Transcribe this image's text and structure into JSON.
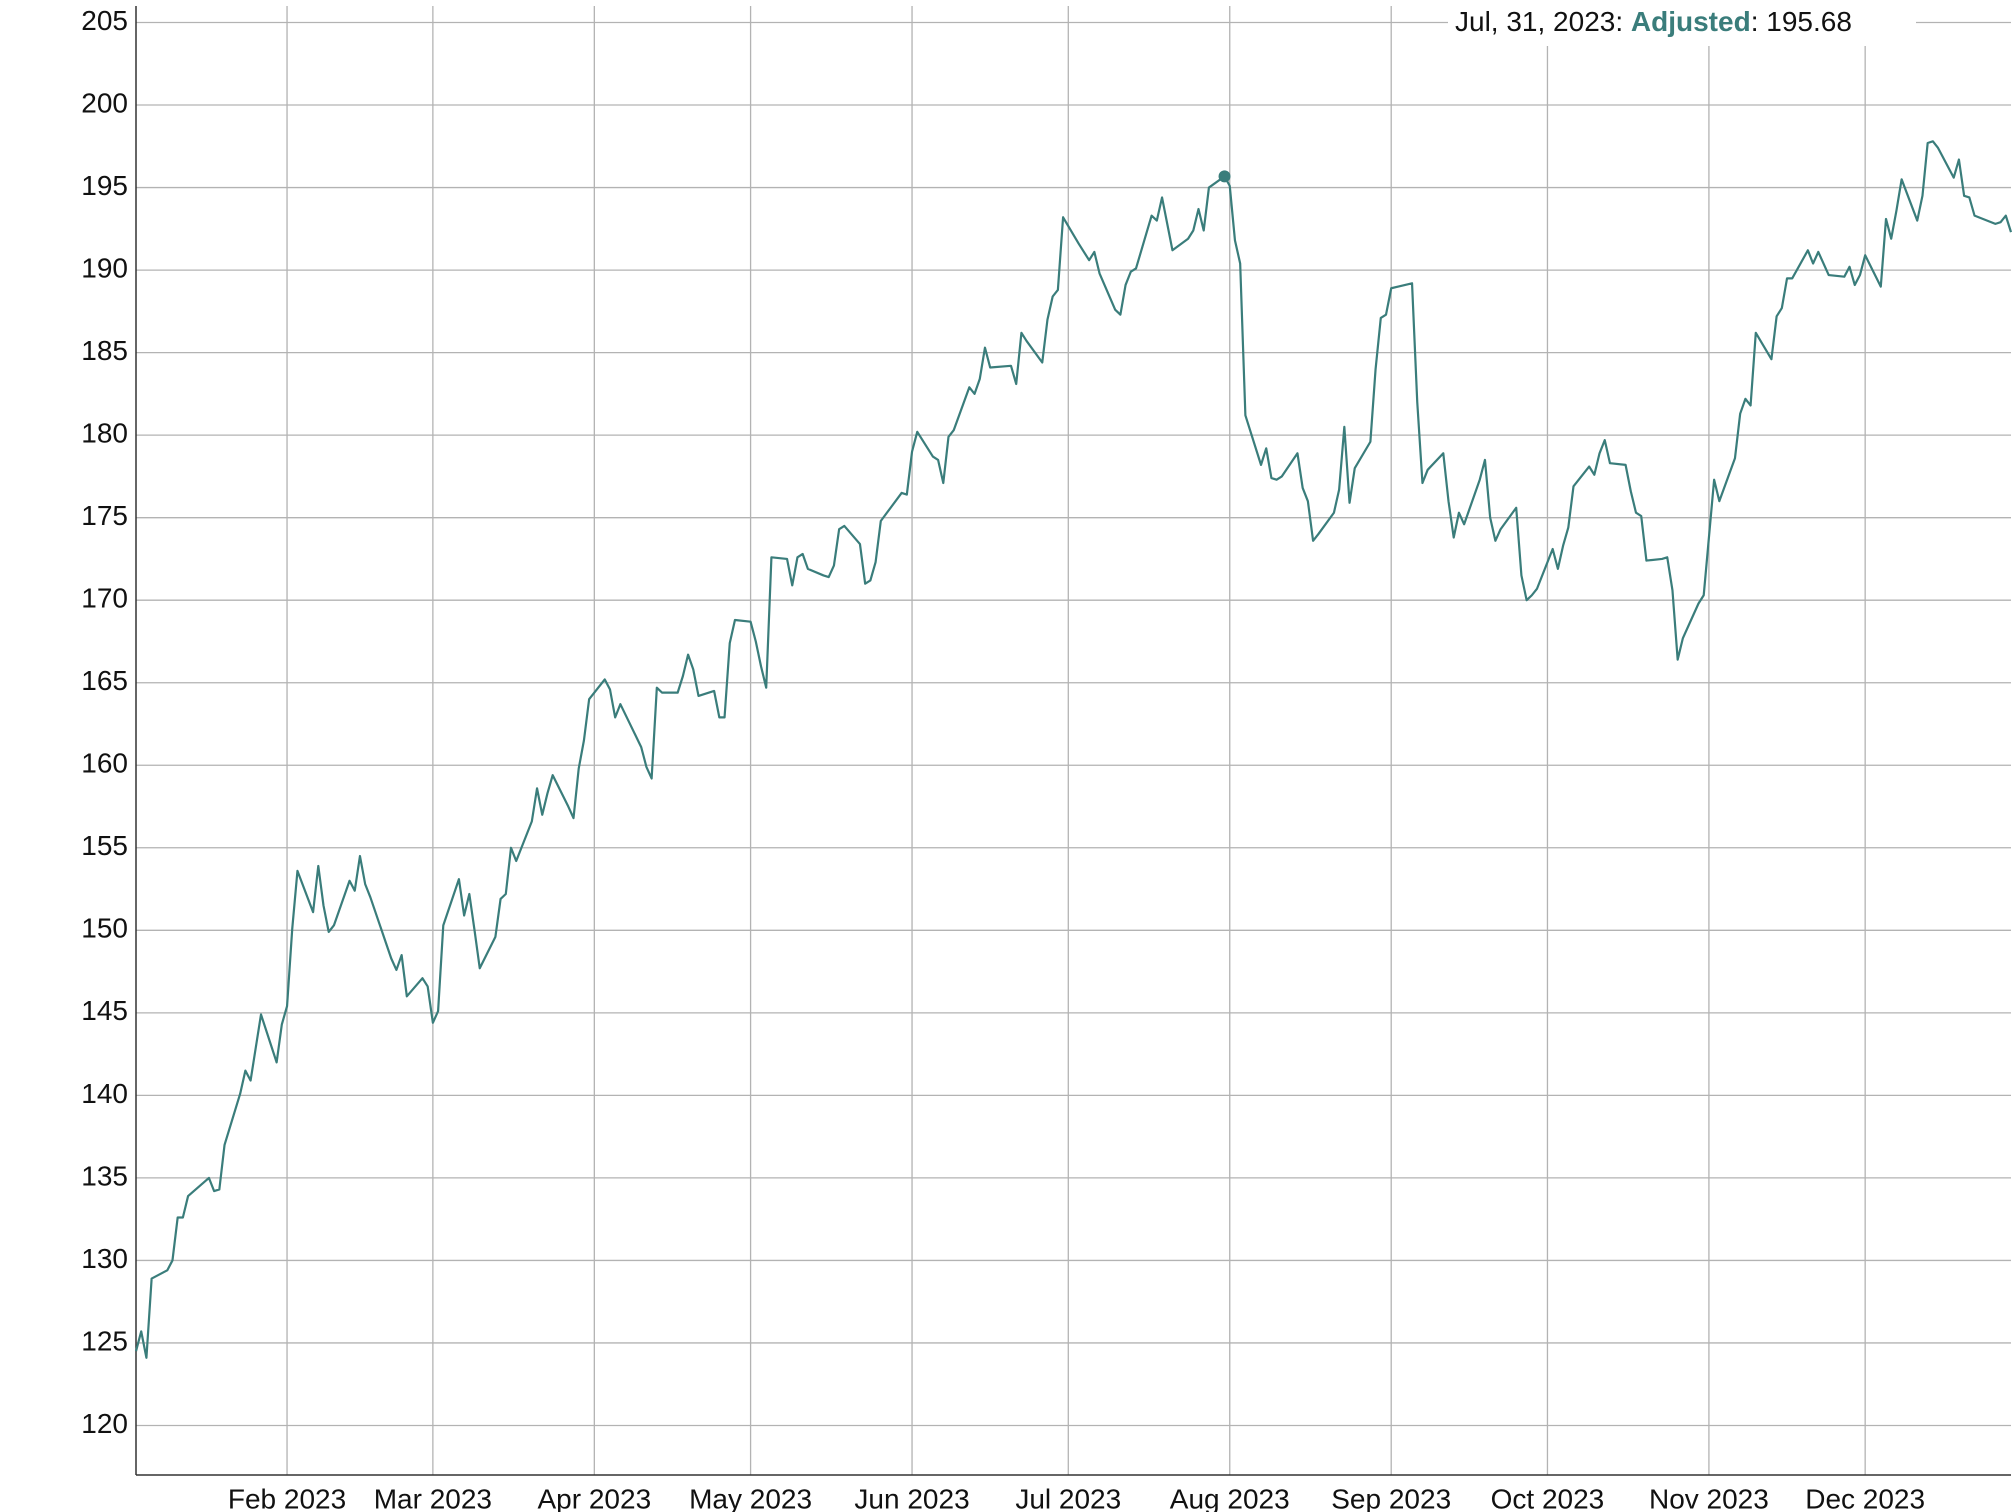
{
  "chart_data": {
    "type": "line",
    "x": [
      "2023-01-03",
      "2023-01-04",
      "2023-01-05",
      "2023-01-06",
      "2023-01-09",
      "2023-01-10",
      "2023-01-11",
      "2023-01-12",
      "2023-01-13",
      "2023-01-17",
      "2023-01-18",
      "2023-01-19",
      "2023-01-20",
      "2023-01-23",
      "2023-01-24",
      "2023-01-25",
      "2023-01-26",
      "2023-01-27",
      "2023-01-30",
      "2023-01-31",
      "2023-02-01",
      "2023-02-02",
      "2023-02-03",
      "2023-02-06",
      "2023-02-07",
      "2023-02-08",
      "2023-02-09",
      "2023-02-10",
      "2023-02-13",
      "2023-02-14",
      "2023-02-15",
      "2023-02-16",
      "2023-02-17",
      "2023-02-21",
      "2023-02-22",
      "2023-02-23",
      "2023-02-24",
      "2023-02-27",
      "2023-02-28",
      "2023-03-01",
      "2023-03-02",
      "2023-03-03",
      "2023-03-06",
      "2023-03-07",
      "2023-03-08",
      "2023-03-09",
      "2023-03-10",
      "2023-03-13",
      "2023-03-14",
      "2023-03-15",
      "2023-03-16",
      "2023-03-17",
      "2023-03-20",
      "2023-03-21",
      "2023-03-22",
      "2023-03-23",
      "2023-03-24",
      "2023-03-27",
      "2023-03-28",
      "2023-03-29",
      "2023-03-30",
      "2023-03-31",
      "2023-04-03",
      "2023-04-04",
      "2023-04-05",
      "2023-04-06",
      "2023-04-10",
      "2023-04-11",
      "2023-04-12",
      "2023-04-13",
      "2023-04-14",
      "2023-04-17",
      "2023-04-18",
      "2023-04-19",
      "2023-04-20",
      "2023-04-21",
      "2023-04-24",
      "2023-04-25",
      "2023-04-26",
      "2023-04-27",
      "2023-04-28",
      "2023-05-01",
      "2023-05-02",
      "2023-05-03",
      "2023-05-04",
      "2023-05-05",
      "2023-05-08",
      "2023-05-09",
      "2023-05-10",
      "2023-05-11",
      "2023-05-12",
      "2023-05-15",
      "2023-05-16",
      "2023-05-17",
      "2023-05-18",
      "2023-05-19",
      "2023-05-22",
      "2023-05-23",
      "2023-05-24",
      "2023-05-25",
      "2023-05-26",
      "2023-05-30",
      "2023-05-31",
      "2023-06-01",
      "2023-06-02",
      "2023-06-05",
      "2023-06-06",
      "2023-06-07",
      "2023-06-08",
      "2023-06-09",
      "2023-06-12",
      "2023-06-13",
      "2023-06-14",
      "2023-06-15",
      "2023-06-16",
      "2023-06-20",
      "2023-06-21",
      "2023-06-22",
      "2023-06-23",
      "2023-06-26",
      "2023-06-27",
      "2023-06-28",
      "2023-06-29",
      "2023-06-30",
      "2023-07-03",
      "2023-07-05",
      "2023-07-06",
      "2023-07-07",
      "2023-07-10",
      "2023-07-11",
      "2023-07-12",
      "2023-07-13",
      "2023-07-14",
      "2023-07-17",
      "2023-07-18",
      "2023-07-19",
      "2023-07-20",
      "2023-07-21",
      "2023-07-24",
      "2023-07-25",
      "2023-07-26",
      "2023-07-27",
      "2023-07-28",
      "2023-07-31",
      "2023-08-01",
      "2023-08-02",
      "2023-08-03",
      "2023-08-04",
      "2023-08-07",
      "2023-08-08",
      "2023-08-09",
      "2023-08-10",
      "2023-08-11",
      "2023-08-14",
      "2023-08-15",
      "2023-08-16",
      "2023-08-17",
      "2023-08-18",
      "2023-08-21",
      "2023-08-22",
      "2023-08-23",
      "2023-08-24",
      "2023-08-25",
      "2023-08-28",
      "2023-08-29",
      "2023-08-30",
      "2023-08-31",
      "2023-09-01",
      "2023-09-05",
      "2023-09-06",
      "2023-09-07",
      "2023-09-08",
      "2023-09-11",
      "2023-09-12",
      "2023-09-13",
      "2023-09-14",
      "2023-09-15",
      "2023-09-18",
      "2023-09-19",
      "2023-09-20",
      "2023-09-21",
      "2023-09-22",
      "2023-09-25",
      "2023-09-26",
      "2023-09-27",
      "2023-09-28",
      "2023-09-29",
      "2023-10-02",
      "2023-10-03",
      "2023-10-04",
      "2023-10-05",
      "2023-10-06",
      "2023-10-09",
      "2023-10-10",
      "2023-10-11",
      "2023-10-12",
      "2023-10-13",
      "2023-10-16",
      "2023-10-17",
      "2023-10-18",
      "2023-10-19",
      "2023-10-20",
      "2023-10-23",
      "2023-10-24",
      "2023-10-25",
      "2023-10-26",
      "2023-10-27",
      "2023-10-30",
      "2023-10-31",
      "2023-11-01",
      "2023-11-02",
      "2023-11-03",
      "2023-11-06",
      "2023-11-07",
      "2023-11-08",
      "2023-11-09",
      "2023-11-10",
      "2023-11-13",
      "2023-11-14",
      "2023-11-15",
      "2023-11-16",
      "2023-11-17",
      "2023-11-20",
      "2023-11-21",
      "2023-11-22",
      "2023-11-24",
      "2023-11-27",
      "2023-11-28",
      "2023-11-29",
      "2023-11-30",
      "2023-12-01",
      "2023-12-04",
      "2023-12-05",
      "2023-12-06",
      "2023-12-07",
      "2023-12-08",
      "2023-12-11",
      "2023-12-12",
      "2023-12-13",
      "2023-12-14",
      "2023-12-15",
      "2023-12-18",
      "2023-12-19",
      "2023-12-20",
      "2023-12-21",
      "2023-12-22",
      "2023-12-26",
      "2023-12-27",
      "2023-12-28",
      "2023-12-29"
    ],
    "series": [
      {
        "name": "Adjusted",
        "color": "#3a7d7b",
        "values": [
          124.5,
          125.7,
          124.1,
          128.9,
          129.4,
          130.0,
          132.6,
          132.6,
          133.9,
          135.0,
          134.2,
          134.3,
          137.0,
          140.1,
          141.5,
          140.9,
          142.9,
          144.9,
          142.0,
          144.3,
          145.4,
          150.1,
          153.6,
          151.1,
          153.9,
          151.5,
          149.9,
          150.3,
          153.0,
          152.4,
          154.5,
          152.8,
          152.0,
          148.3,
          147.6,
          148.5,
          146.0,
          147.1,
          146.6,
          144.4,
          145.1,
          150.3,
          153.1,
          150.9,
          152.2,
          150.0,
          147.7,
          149.6,
          151.9,
          152.2,
          155.0,
          154.2,
          156.6,
          158.6,
          157.0,
          158.3,
          159.4,
          157.5,
          156.8,
          159.8,
          161.5,
          164.0,
          165.2,
          164.6,
          162.9,
          163.7,
          161.1,
          159.9,
          159.2,
          164.7,
          164.4,
          164.4,
          165.4,
          166.7,
          165.8,
          164.2,
          164.5,
          162.9,
          162.9,
          167.4,
          168.8,
          168.7,
          167.5,
          166.0,
          164.7,
          172.6,
          172.5,
          170.9,
          172.6,
          172.8,
          171.9,
          171.5,
          171.4,
          172.1,
          174.3,
          174.5,
          173.4,
          171.0,
          171.2,
          172.3,
          174.8,
          176.5,
          176.4,
          179.0,
          180.2,
          178.7,
          178.5,
          177.1,
          179.9,
          180.3,
          182.9,
          182.5,
          183.4,
          185.3,
          184.1,
          184.2,
          183.1,
          186.2,
          185.7,
          184.4,
          187.0,
          188.4,
          188.8,
          193.2,
          191.6,
          190.6,
          191.1,
          189.8,
          187.6,
          187.3,
          189.1,
          189.9,
          190.1,
          193.3,
          193.0,
          194.4,
          192.8,
          191.2,
          191.9,
          192.4,
          193.7,
          192.4,
          195.0,
          195.68,
          195.1,
          191.8,
          190.4,
          181.2,
          178.2,
          179.2,
          177.4,
          177.3,
          177.5,
          178.9,
          176.8,
          176.0,
          173.6,
          174.0,
          175.3,
          176.7,
          180.5,
          175.9,
          178.0,
          179.6,
          184.0,
          187.1,
          187.3,
          188.9,
          189.2,
          182.0,
          177.1,
          177.9,
          178.9,
          176.0,
          173.8,
          175.3,
          174.6,
          177.3,
          178.5,
          175.0,
          173.6,
          174.3,
          175.6,
          171.5,
          170.0,
          170.3,
          170.7,
          173.1,
          171.9,
          173.3,
          174.4,
          176.9,
          178.1,
          177.6,
          178.9,
          179.7,
          178.3,
          178.2,
          176.6,
          175.3,
          175.1,
          172.4,
          172.5,
          172.6,
          170.6,
          166.4,
          167.7,
          169.8,
          170.3,
          173.8,
          177.3,
          176.0,
          178.6,
          181.3,
          182.2,
          181.8,
          186.2,
          184.6,
          187.2,
          187.7,
          189.5,
          189.5,
          191.2,
          190.4,
          191.1,
          189.7,
          189.6,
          190.2,
          189.1,
          189.7,
          190.9,
          189.0,
          193.1,
          191.9,
          193.6,
          195.5,
          193.0,
          194.5,
          197.7,
          197.8,
          197.4,
          195.6,
          196.7,
          194.5,
          194.4,
          193.3,
          192.8,
          192.9,
          193.3,
          192.3
        ]
      }
    ],
    "xlim": [
      "2023-01-03",
      "2023-12-29"
    ],
    "xticks": [
      {
        "value": "2023-02-01",
        "label": "Feb 2023"
      },
      {
        "value": "2023-03-01",
        "label": "Mar 2023"
      },
      {
        "value": "2023-04-01",
        "label": "Apr 2023"
      },
      {
        "value": "2023-05-01",
        "label": "May 2023"
      },
      {
        "value": "2023-06-01",
        "label": "Jun 2023"
      },
      {
        "value": "2023-07-01",
        "label": "Jul 2023"
      },
      {
        "value": "2023-08-01",
        "label": "Aug 2023"
      },
      {
        "value": "2023-09-01",
        "label": "Sep 2023"
      },
      {
        "value": "2023-10-01",
        "label": "Oct 2023"
      },
      {
        "value": "2023-11-01",
        "label": "Nov 2023"
      },
      {
        "value": "2023-12-01",
        "label": "Dec 2023"
      }
    ],
    "ylim": [
      117,
      206
    ],
    "yticks": [
      120,
      125,
      130,
      135,
      140,
      145,
      150,
      155,
      160,
      165,
      170,
      175,
      180,
      185,
      190,
      195,
      200,
      205
    ],
    "grid": true,
    "tooltip": {
      "x": "2023-07-31",
      "date": "Jul, 31, 2023",
      "name": "Adjusted",
      "value": 195.68
    }
  }
}
